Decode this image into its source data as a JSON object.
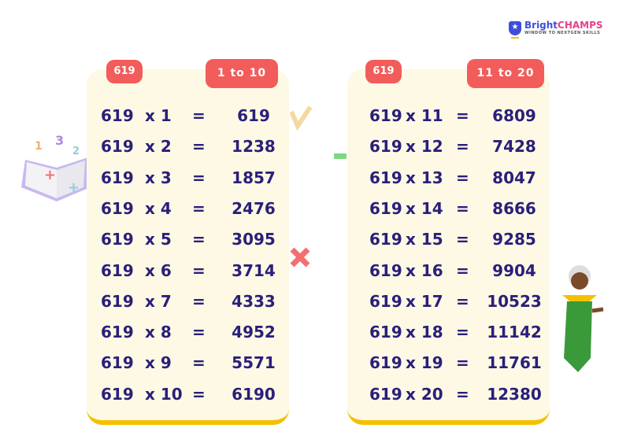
{
  "logo": {
    "brand_part1": "Bright",
    "brand_part2": "CHAMPS",
    "tagline": "WINDOW TO NEXTGEN SKILLS"
  },
  "colors": {
    "badge": "#f25c5a",
    "text": "#2a1f7a",
    "card": "#fdf9e4",
    "accent": "#f5c000"
  },
  "cards": [
    {
      "number": "619",
      "range": "1 to 10",
      "rows": [
        {
          "a": "619",
          "m": "x 1",
          "eq": "=",
          "r": "619"
        },
        {
          "a": "619",
          "m": "x 2",
          "eq": "=",
          "r": "1238"
        },
        {
          "a": "619",
          "m": "x 3",
          "eq": "=",
          "r": "1857"
        },
        {
          "a": "619",
          "m": "x 4",
          "eq": "=",
          "r": "2476"
        },
        {
          "a": "619",
          "m": "x 5",
          "eq": "=",
          "r": "3095"
        },
        {
          "a": "619",
          "m": "x 6",
          "eq": "=",
          "r": "3714"
        },
        {
          "a": "619",
          "m": "x 7",
          "eq": "=",
          "r": "4333"
        },
        {
          "a": "619",
          "m": "x 8",
          "eq": "=",
          "r": "4952"
        },
        {
          "a": "619",
          "m": "x 9",
          "eq": "=",
          "r": "5571"
        },
        {
          "a": "619",
          "m": "x 10",
          "eq": "=",
          "r": "6190"
        }
      ]
    },
    {
      "number": "619",
      "range": "11 to 20",
      "rows": [
        {
          "a": "619",
          "m": "x 11",
          "eq": "=",
          "r": "6809"
        },
        {
          "a": "619",
          "m": "x 12",
          "eq": "=",
          "r": "7428"
        },
        {
          "a": "619",
          "m": "x 13",
          "eq": "=",
          "r": "8047"
        },
        {
          "a": "619",
          "m": "x 14",
          "eq": "=",
          "r": "8666"
        },
        {
          "a": "619",
          "m": "x 15",
          "eq": "=",
          "r": "9285"
        },
        {
          "a": "619",
          "m": "x 16",
          "eq": "=",
          "r": "9904"
        },
        {
          "a": "619",
          "m": "x 17",
          "eq": "=",
          "r": "10523"
        },
        {
          "a": "619",
          "m": "x 18",
          "eq": "=",
          "r": "11142"
        },
        {
          "a": "619",
          "m": "x 19",
          "eq": "=",
          "r": "11761"
        },
        {
          "a": "619",
          "m": "x 20",
          "eq": "=",
          "r": "12380"
        }
      ]
    }
  ]
}
